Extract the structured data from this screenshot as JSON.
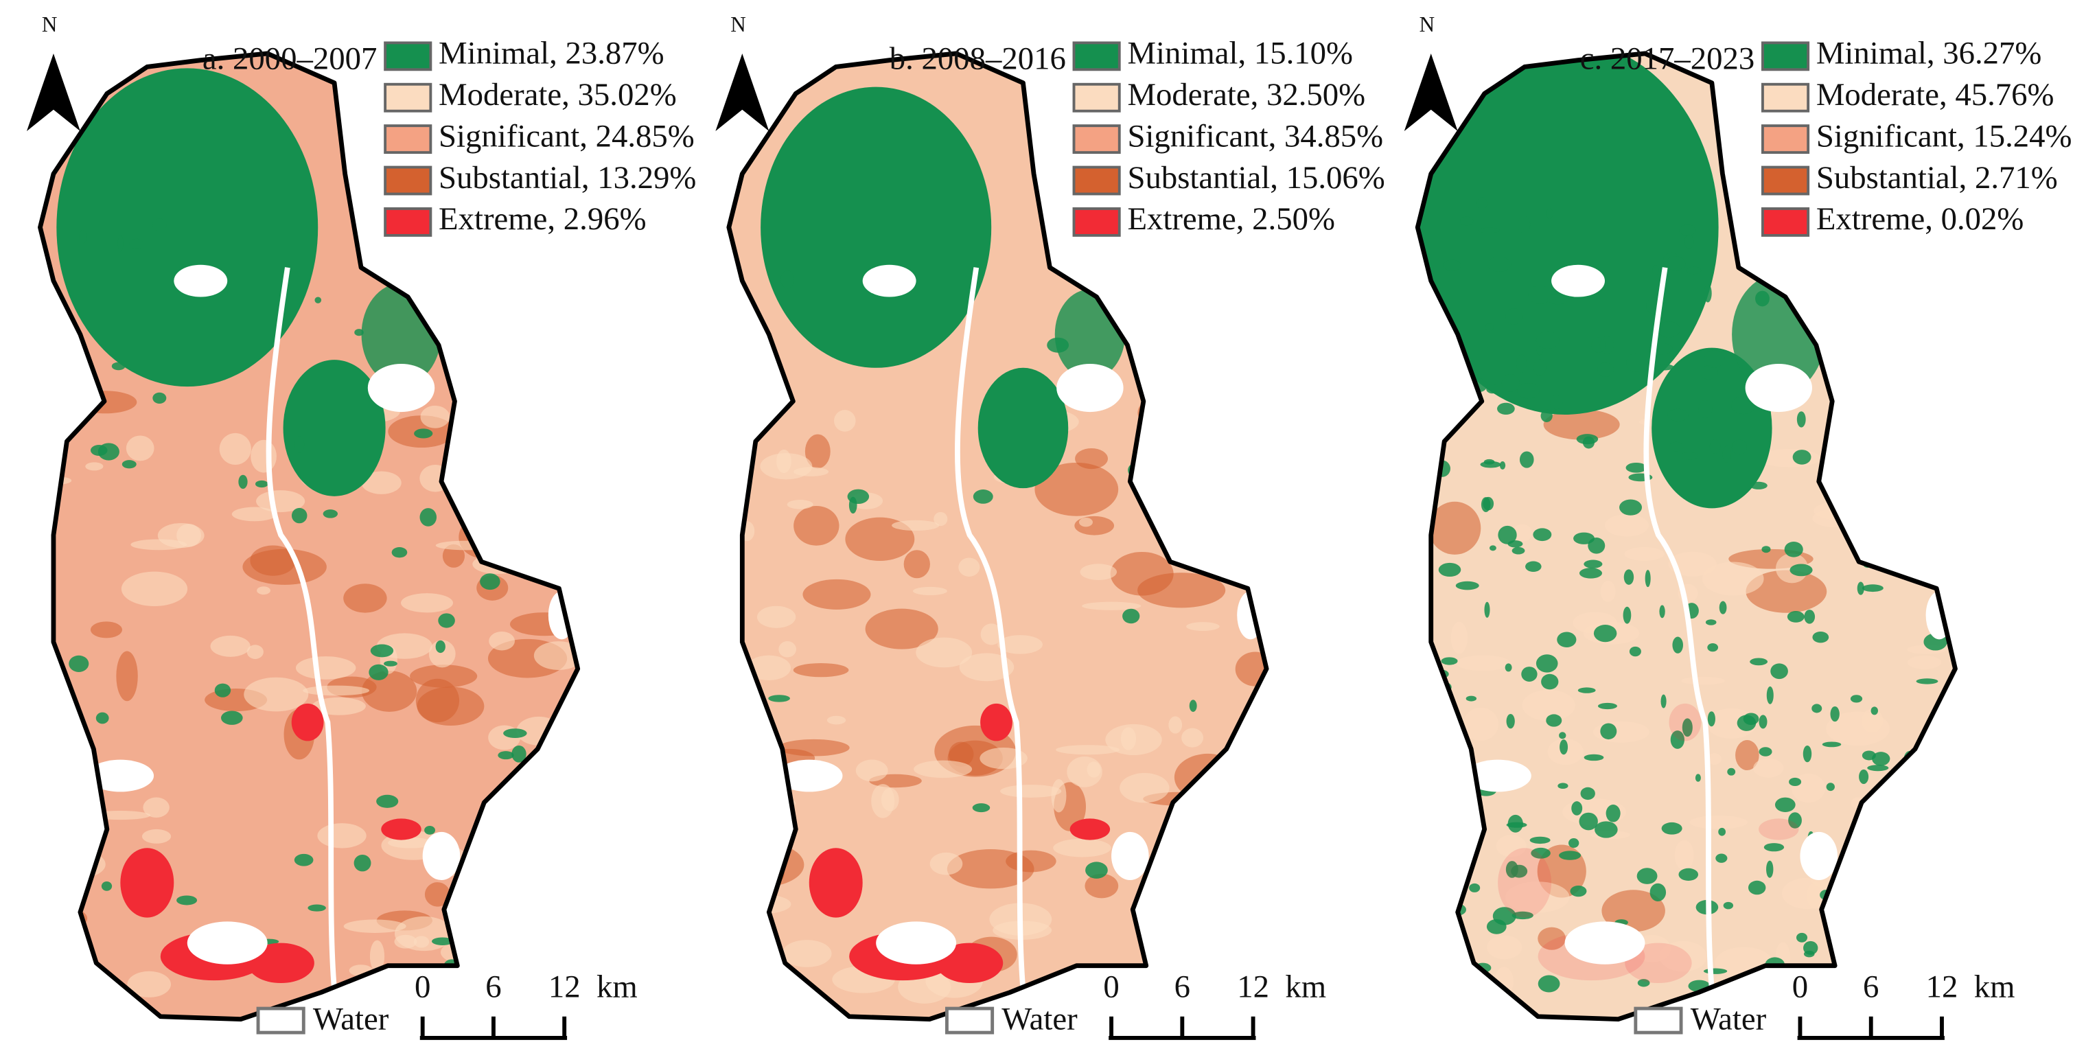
{
  "panels": [
    {
      "title": "a. 2000–2007",
      "north": "N",
      "legend": [
        "Minimal, 23.87%",
        "Moderate, 35.02%",
        "Significant, 24.85%",
        "Substantial, 13.29%",
        "Extreme, 2.96%"
      ],
      "water": "Water",
      "scale": [
        "0",
        "6",
        "12",
        "km"
      ]
    },
    {
      "title": "b. 2008–2016",
      "north": "N",
      "legend": [
        "Minimal, 15.10%",
        "Moderate, 32.50%",
        "Significant, 34.85%",
        "Substantial, 15.06%",
        "Extreme, 2.50%"
      ],
      "water": "Water",
      "scale": [
        "0",
        "6",
        "12",
        "km"
      ]
    },
    {
      "title": "c. 2017–2023",
      "north": "N",
      "legend": [
        "Minimal, 36.27%",
        "Moderate, 45.76%",
        "Significant, 15.24%",
        "Substantial, 2.71%",
        "Extreme, 0.02%"
      ],
      "water": "Water",
      "scale": [
        "0",
        "6",
        "12",
        "km"
      ]
    }
  ]
}
